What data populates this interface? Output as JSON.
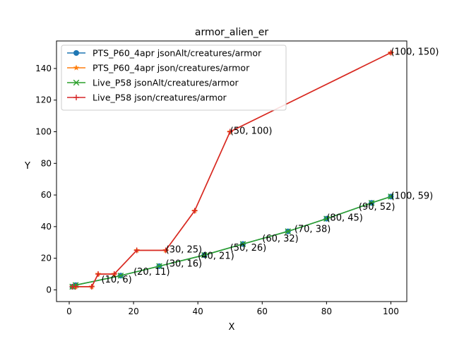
{
  "chart_data": {
    "type": "line",
    "title": "armor_alien_er",
    "xlabel": "X",
    "ylabel": "Y",
    "xlim": [
      -3.95,
      104.95
    ],
    "ylim": [
      -7.4,
      157.4
    ],
    "xticks": [
      0,
      20,
      40,
      60,
      80,
      100
    ],
    "yticks": [
      0,
      20,
      40,
      60,
      80,
      100,
      120,
      140
    ],
    "grid": false,
    "legend_position": "top-left",
    "series": [
      {
        "name": "PTS_P60_4apr jsonAlt/creatures/armor",
        "color": "#1f77b4",
        "marker": "circle",
        "x": [
          1,
          2,
          16,
          28,
          42,
          54,
          68,
          80,
          94,
          100
        ],
        "y": [
          2,
          3,
          9,
          15,
          22,
          29,
          37,
          45,
          55,
          59
        ]
      },
      {
        "name": "PTS_P60_4apr json/creatures/armor",
        "color": "#ff7f0e",
        "marker": "star",
        "x": [
          1,
          2,
          7,
          9,
          14,
          21,
          30,
          39,
          50,
          100
        ],
        "y": [
          2,
          2,
          2,
          10,
          10,
          25,
          25,
          50,
          100,
          150
        ]
      },
      {
        "name": "Live_P58 jsonAlt/creatures/armor",
        "color": "#2ca02c",
        "marker": "x",
        "x": [
          1,
          2,
          16,
          28,
          42,
          54,
          68,
          80,
          94,
          100
        ],
        "y": [
          2,
          3,
          9,
          15,
          22,
          29,
          37,
          45,
          55,
          59
        ]
      },
      {
        "name": "Live_P58 json/creatures/armor",
        "color": "#d62728",
        "marker": "plus",
        "x": [
          1,
          2,
          7,
          9,
          14,
          21,
          30,
          39,
          50,
          100
        ],
        "y": [
          2,
          2,
          2,
          10,
          10,
          25,
          25,
          50,
          100,
          150
        ]
      }
    ],
    "annotations": [
      {
        "text": "(10, 6)",
        "x": 10,
        "y": 6
      },
      {
        "text": "(20, 11)",
        "x": 20,
        "y": 11
      },
      {
        "text": "(30, 16)",
        "x": 30,
        "y": 16
      },
      {
        "text": "(40, 21)",
        "x": 40,
        "y": 21
      },
      {
        "text": "(50, 26)",
        "x": 50,
        "y": 26
      },
      {
        "text": "(60, 32)",
        "x": 60,
        "y": 32
      },
      {
        "text": "(70, 38)",
        "x": 70,
        "y": 38
      },
      {
        "text": "(80, 45)",
        "x": 80,
        "y": 45
      },
      {
        "text": "(90, 52)",
        "x": 90,
        "y": 52
      },
      {
        "text": "(100, 59)",
        "x": 100,
        "y": 59
      },
      {
        "text": "(30, 25)",
        "x": 30,
        "y": 25
      },
      {
        "text": "(50, 100)",
        "x": 50,
        "y": 100
      },
      {
        "text": "(100, 150)",
        "x": 100,
        "y": 150
      }
    ]
  }
}
